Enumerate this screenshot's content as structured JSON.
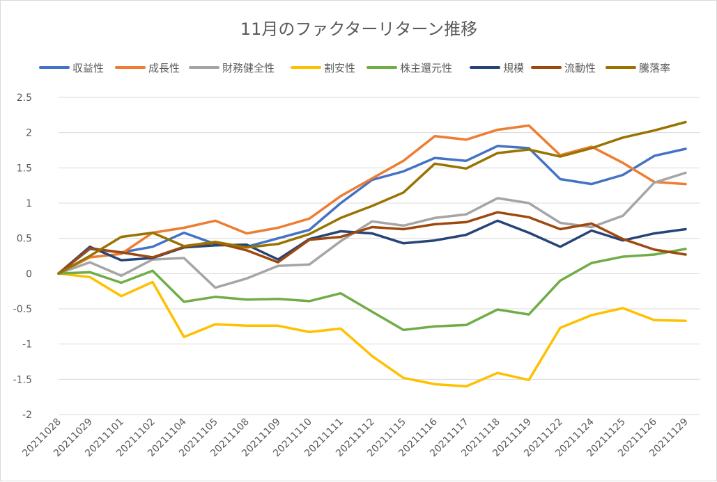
{
  "chart_data": {
    "type": "line",
    "title": "11月のファクターリターン推移",
    "xlabel": "",
    "ylabel": "",
    "ylim": [
      -2,
      2.5
    ],
    "yticks": [
      -2,
      -1.5,
      -1,
      -0.5,
      0,
      0.5,
      1,
      1.5,
      2,
      2.5
    ],
    "ytick_labels": [
      "-2",
      "-1.5",
      "-1",
      "-0.5",
      "0",
      "0.5",
      "1",
      "1.5",
      "2",
      "2.5"
    ],
    "grid": true,
    "legend_position": "top",
    "x": [
      "20211028",
      "20211029",
      "20211101",
      "20211102",
      "20211104",
      "20211105",
      "20211108",
      "20211109",
      "20211110",
      "20211111",
      "20211112",
      "20211115",
      "20211116",
      "20211117",
      "20211118",
      "20211119",
      "20211122",
      "20211124",
      "20211125",
      "20211126",
      "20211129"
    ],
    "series": [
      {
        "name": "収益性",
        "color": "#4472c4",
        "values": [
          0,
          0.35,
          0.3,
          0.38,
          0.58,
          0.42,
          0.38,
          0.5,
          0.62,
          1.0,
          1.33,
          1.45,
          1.64,
          1.6,
          1.81,
          1.78,
          1.34,
          1.27,
          1.4,
          1.67,
          1.77
        ]
      },
      {
        "name": "成長性",
        "color": "#ed7d31",
        "values": [
          0,
          0.23,
          0.28,
          0.58,
          0.65,
          0.75,
          0.57,
          0.65,
          0.78,
          1.1,
          1.35,
          1.6,
          1.95,
          1.9,
          2.04,
          2.1,
          1.68,
          1.8,
          1.57,
          1.3,
          1.27
        ]
      },
      {
        "name": "財務健全性",
        "color": "#a5a5a5",
        "values": [
          0,
          0.16,
          -0.03,
          0.2,
          0.22,
          -0.2,
          -0.07,
          0.11,
          0.13,
          0.46,
          0.74,
          0.68,
          0.79,
          0.84,
          1.07,
          1.0,
          0.72,
          0.66,
          0.82,
          1.29,
          1.43
        ]
      },
      {
        "name": "割安性",
        "color": "#ffc000",
        "values": [
          0,
          -0.05,
          -0.32,
          -0.12,
          -0.9,
          -0.72,
          -0.74,
          -0.74,
          -0.83,
          -0.78,
          -1.17,
          -1.48,
          -1.57,
          -1.6,
          -1.41,
          -1.51,
          -0.77,
          -0.59,
          -0.49,
          -0.66,
          -0.67
        ]
      },
      {
        "name": "株主還元性",
        "color": "#70ad47",
        "values": [
          0,
          0.02,
          -0.13,
          0.04,
          -0.4,
          -0.33,
          -0.37,
          -0.36,
          -0.39,
          -0.28,
          -0.54,
          -0.8,
          -0.75,
          -0.73,
          -0.51,
          -0.58,
          -0.1,
          0.15,
          0.24,
          0.27,
          0.35
        ]
      },
      {
        "name": "規模",
        "color": "#264478",
        "values": [
          0,
          0.38,
          0.19,
          0.22,
          0.37,
          0.4,
          0.41,
          0.2,
          0.49,
          0.6,
          0.57,
          0.43,
          0.47,
          0.55,
          0.75,
          0.58,
          0.38,
          0.61,
          0.47,
          0.57,
          0.63
        ]
      },
      {
        "name": "流動性",
        "color": "#9e480e",
        "values": [
          0,
          0.36,
          0.3,
          0.23,
          0.38,
          0.44,
          0.33,
          0.16,
          0.48,
          0.52,
          0.66,
          0.63,
          0.7,
          0.73,
          0.87,
          0.8,
          0.63,
          0.71,
          0.49,
          0.34,
          0.27
        ]
      },
      {
        "name": "騰落率",
        "color": "#997300",
        "values": [
          0,
          0.25,
          0.52,
          0.58,
          0.39,
          0.45,
          0.37,
          0.42,
          0.56,
          0.79,
          0.96,
          1.15,
          1.56,
          1.49,
          1.71,
          1.76,
          1.66,
          1.78,
          1.93,
          2.03,
          2.15
        ]
      }
    ]
  }
}
